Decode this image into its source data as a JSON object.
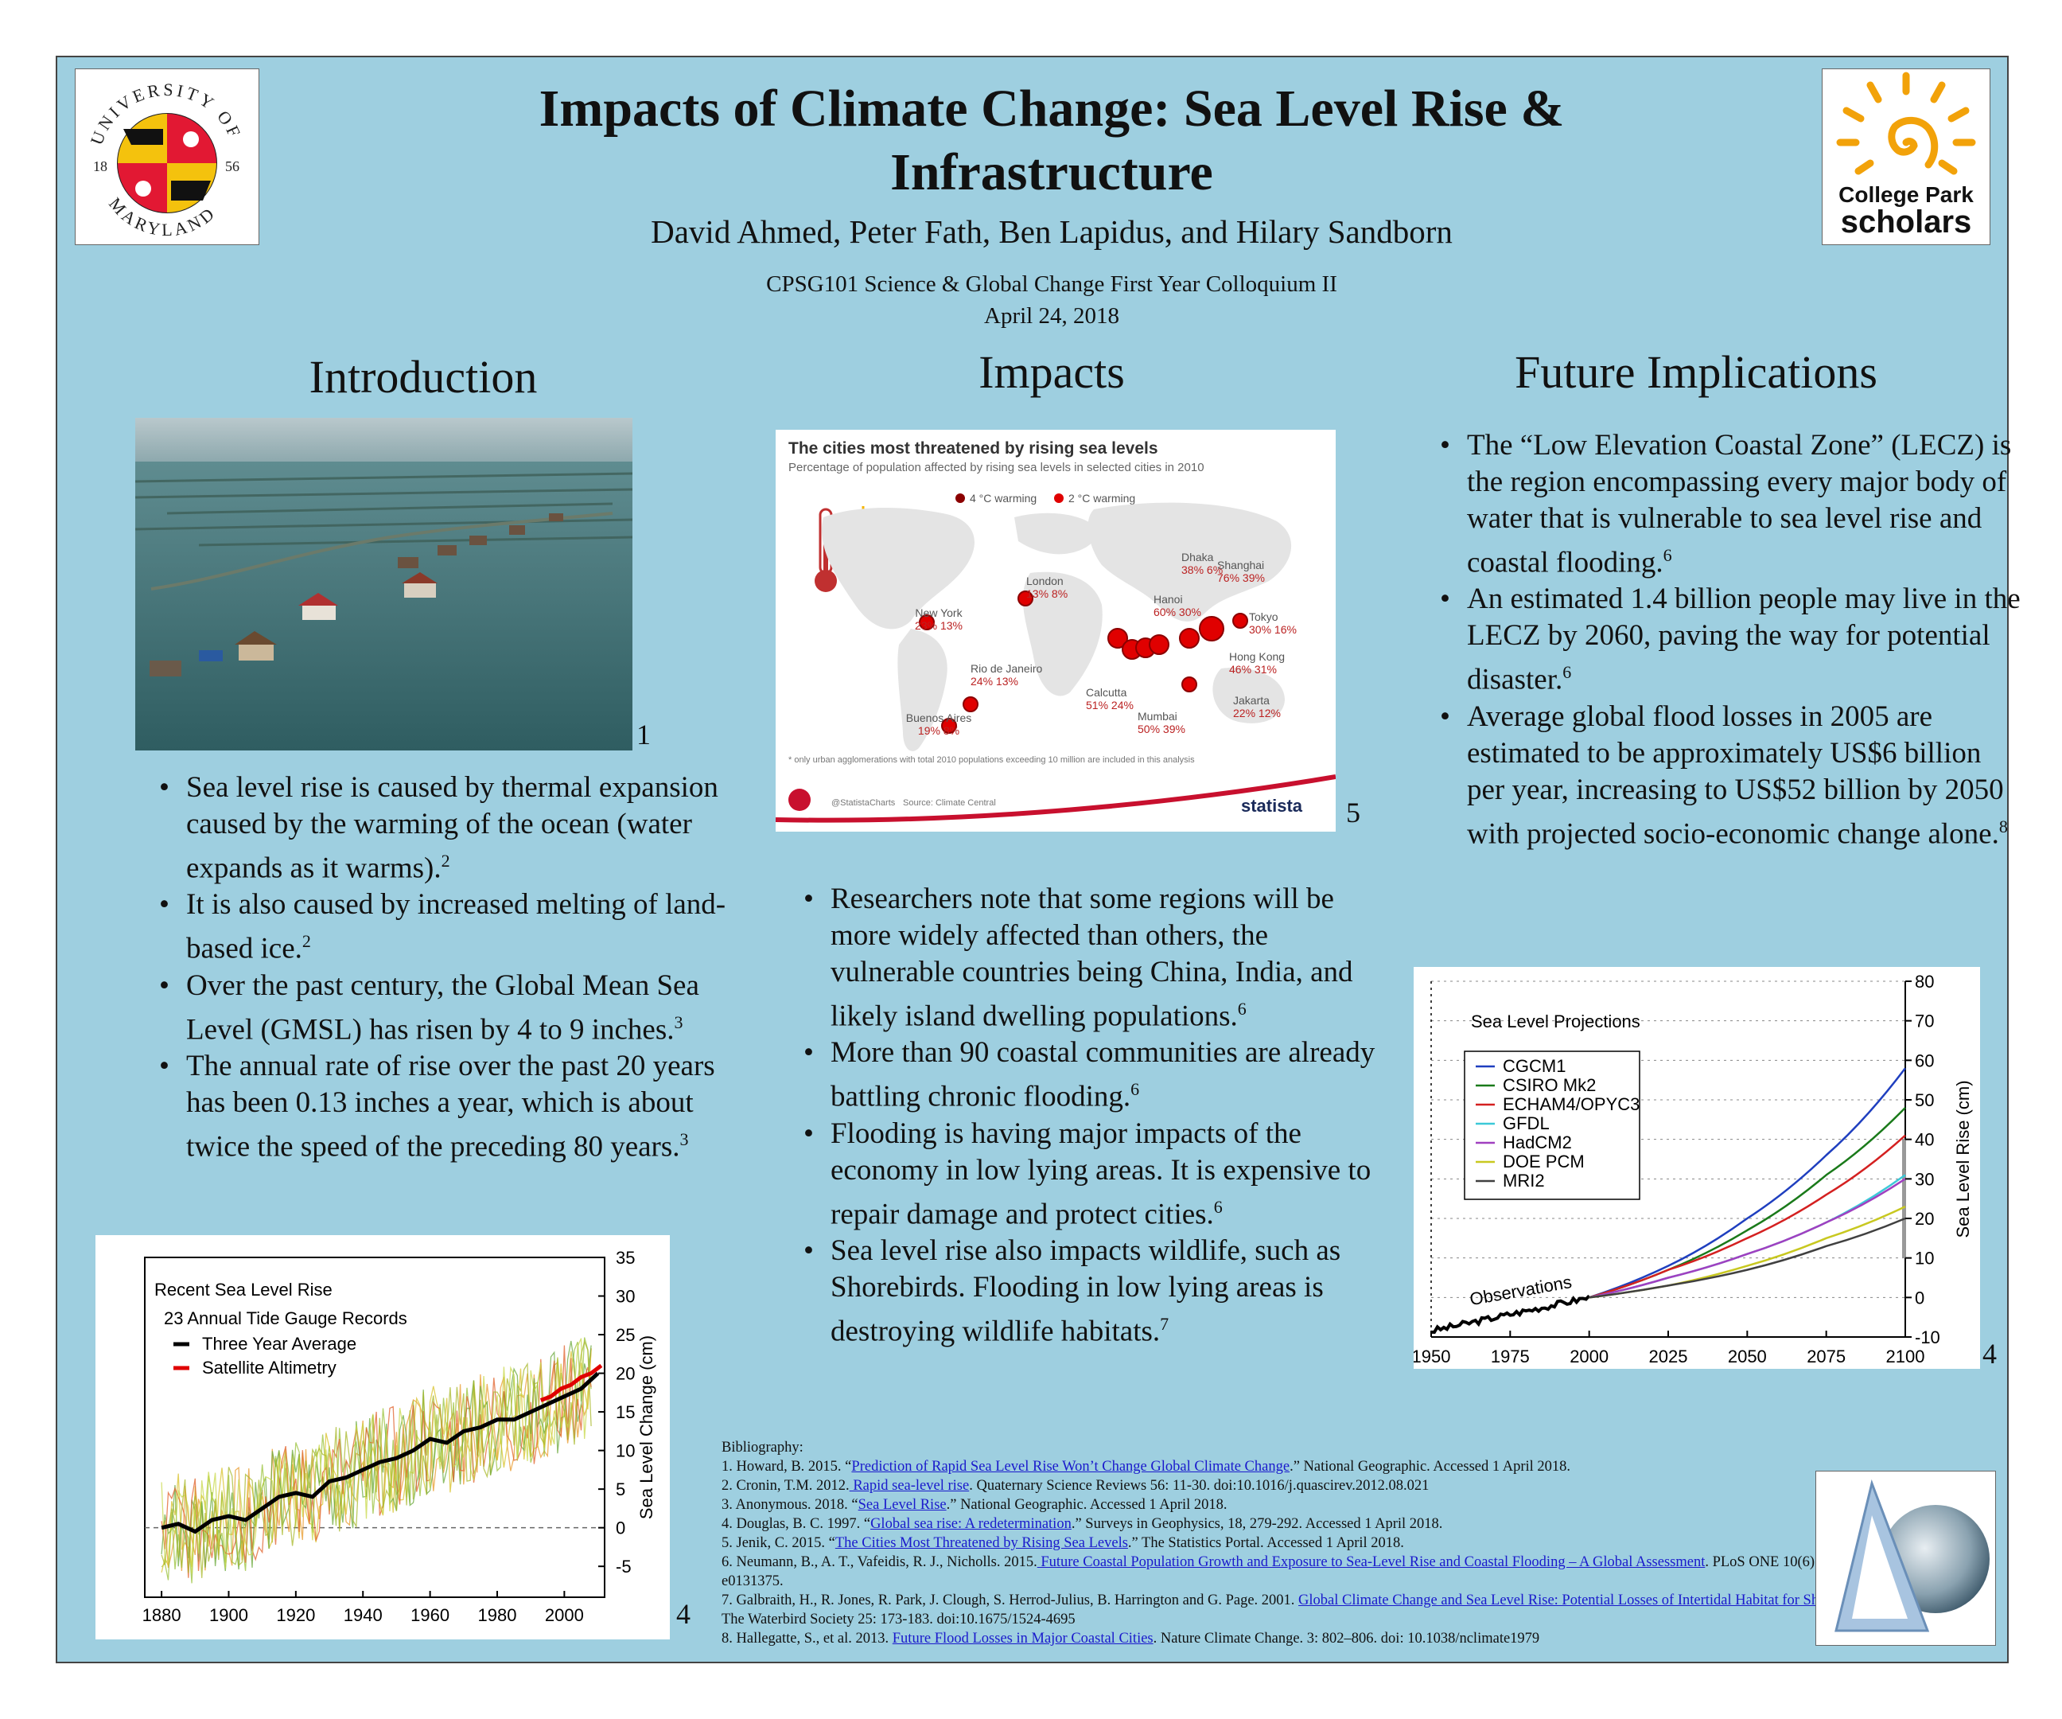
{
  "header": {
    "title_line1": "Impacts of Climate Change: Sea Level Rise &",
    "title_line2": "Infrastructure",
    "authors": "David Ahmed, Peter Fath, Ben Lapidus, and Hilary Sandborn",
    "course": "CPSG101 Science & Global Change First Year Colloquium II",
    "date": "April 24, 2018"
  },
  "logos": {
    "umd_top": "UNIVERSITY OF",
    "umd_bottom": "MARYLAND",
    "umd_year_left": "18",
    "umd_year_right": "56",
    "cps_line1": "College Park",
    "cps_line2": "scholars"
  },
  "intro": {
    "heading": "Introduction",
    "photo_fignum": "1",
    "bullets": [
      {
        "text": "Sea level rise is caused by thermal expansion caused by the warming of the ocean (water expands as it warms).",
        "ref": "2"
      },
      {
        "text": "It is also caused by increased melting of land-based ice.",
        "ref": "2"
      },
      {
        "text": "Over the past century, the Global Mean Sea Level (GMSL) has risen by 4 to 9 inches.",
        "ref": "3"
      },
      {
        "text": "The annual rate of rise over the past 20 years has been 0.13 inches a year, which is about twice the speed of the preceding 80 years.",
        "ref": "3"
      }
    ]
  },
  "impacts": {
    "heading": "Impacts",
    "map_fignum": "5",
    "bullets": [
      {
        "text": "Researchers note that some regions will be more widely affected than others, the vulnerable countries being China, India, and likely island dwelling populations.",
        "ref": "6"
      },
      {
        "text": "More than 90 coastal communities are already battling chronic flooding.",
        "ref": "6"
      },
      {
        "text": "Flooding is having major impacts of the economy in low lying areas. It is expensive to repair damage and protect cities.",
        "ref": "6"
      },
      {
        "text": "Sea level rise also impacts wildlife, such as Shorebirds. Flooding in low lying areas is destroying wildlife habitats.",
        "ref": "7"
      }
    ]
  },
  "future": {
    "heading": "Future Implications",
    "bullets": [
      {
        "text": "The “Low Elevation Coastal Zone” (LECZ) is the region encompassing every major body of water that is vulnerable to sea level rise and coastal flooding.",
        "ref": "6"
      },
      {
        "text": "An estimated 1.4 billion people may live in the LECZ by 2060, paving the way for potential disaster.",
        "ref": "6"
      },
      {
        "text": "Average global flood losses in 2005 are estimated to be approximately US$6 billion per year, increasing to US$52 billion by 2050 with projected socio-economic change alone.",
        "ref": "8"
      }
    ]
  },
  "map_infographic": {
    "title": "The cities most threatened by rising sea levels",
    "subtitle": "Percentage of population affected by rising sea levels in selected cities in 2010",
    "legend_4c": "4 °C warming",
    "legend_2c": "2 °C warming",
    "footnote": "* only urban agglomerations with total 2010 populations exceeding 10 million are included in this analysis",
    "credit": "@StatistaCharts",
    "source": "Source: Climate Central",
    "brand": "statista",
    "color_4c": "#8b0000",
    "color_2c": "#e00000",
    "cities": [
      {
        "name": "London",
        "pct_4c": "13%",
        "pct_2c": "8%"
      },
      {
        "name": "New York",
        "pct_4c": "23%",
        "pct_2c": "13%"
      },
      {
        "name": "Rio de Janeiro",
        "pct_4c": "24%",
        "pct_2c": "13%"
      },
      {
        "name": "Buenos Aires",
        "pct_4c": "19%",
        "pct_2c": "8%"
      },
      {
        "name": "Calcutta",
        "pct_4c": "51%",
        "pct_2c": "24%"
      },
      {
        "name": "Mumbai",
        "pct_4c": "50%",
        "pct_2c": "39%"
      },
      {
        "name": "Dhaka",
        "pct_4c": "38%",
        "pct_2c": "6%"
      },
      {
        "name": "Hanoi",
        "pct_4c": "60%",
        "pct_2c": "30%"
      },
      {
        "name": "Shanghai",
        "pct_4c": "76%",
        "pct_2c": "39%"
      },
      {
        "name": "Tokyo",
        "pct_4c": "30%",
        "pct_2c": "16%"
      },
      {
        "name": "Hong Kong",
        "pct_4c": "46%",
        "pct_2c": "31%"
      },
      {
        "name": "Jakarta",
        "pct_4c": "22%",
        "pct_2c": "12%"
      }
    ]
  },
  "chart_data": [
    {
      "type": "line",
      "title": "Recent Sea Level Rise",
      "subtitle": "23 Annual Tide Gauge Records",
      "ylabel": "Sea Level Change (cm)",
      "xlabel": "",
      "xlim": [
        1875,
        2012
      ],
      "ylim": [
        -9,
        35
      ],
      "xticks": [
        1880,
        1900,
        1920,
        1940,
        1960,
        1980,
        2000
      ],
      "yticks": [
        -5,
        0,
        5,
        10,
        15,
        20,
        25,
        30,
        35
      ],
      "grid": false,
      "legend_position": "top-left",
      "fignum": "4",
      "series": [
        {
          "name": "Three Year Average",
          "color": "#000000",
          "x": [
            1880,
            1885,
            1890,
            1895,
            1900,
            1905,
            1910,
            1915,
            1920,
            1925,
            1930,
            1935,
            1940,
            1945,
            1950,
            1955,
            1960,
            1965,
            1970,
            1975,
            1980,
            1985,
            1990,
            1995,
            2000,
            2005,
            2010
          ],
          "y": [
            0,
            0.5,
            -0.5,
            1,
            1.5,
            1,
            2.5,
            4,
            4.5,
            4,
            6,
            6.5,
            7.5,
            8.5,
            9,
            10,
            11.5,
            11,
            12.5,
            13,
            14,
            14,
            15,
            16,
            17,
            18,
            20
          ]
        },
        {
          "name": "Satellite Altimetry",
          "color": "#e00000",
          "x": [
            1993,
            1996,
            1999,
            2002,
            2005,
            2008,
            2011
          ],
          "y": [
            16.5,
            17,
            18,
            18.5,
            19.5,
            20,
            21
          ]
        }
      ]
    },
    {
      "type": "line",
      "title": "Sea Level Projections",
      "ylabel": "Sea Level Rise (cm)",
      "xlabel": "",
      "annotation": "Observations",
      "xlim": [
        1950,
        2100
      ],
      "ylim": [
        -10,
        80
      ],
      "xticks": [
        1950,
        1975,
        2000,
        2025,
        2050,
        2075,
        2100
      ],
      "yticks": [
        -10,
        0,
        10,
        20,
        30,
        40,
        50,
        60,
        70,
        80
      ],
      "grid": true,
      "legend_position": "top-left",
      "fignum": "4",
      "series": [
        {
          "name": "Observations",
          "color": "#000000",
          "x": [
            1950,
            1955,
            1960,
            1965,
            1970,
            1975,
            1980,
            1985,
            1990,
            1995,
            2000
          ],
          "y": [
            -8.5,
            -8,
            -7,
            -6.5,
            -5.5,
            -4.5,
            -4,
            -3,
            -2,
            -1,
            0
          ]
        },
        {
          "name": "CGCM1",
          "color": "#1f3fbf",
          "x": [
            2000,
            2025,
            2050,
            2075,
            2100
          ],
          "y": [
            0,
            8,
            20,
            36,
            58
          ]
        },
        {
          "name": "CSIRO Mk2",
          "color": "#1a7a1a",
          "x": [
            2000,
            2025,
            2050,
            2075,
            2100
          ],
          "y": [
            0,
            7,
            17,
            31,
            48
          ]
        },
        {
          "name": "ECHAM4/OPYC3",
          "color": "#d42020",
          "x": [
            2000,
            2025,
            2050,
            2075,
            2100
          ],
          "y": [
            0,
            7,
            15,
            26,
            41
          ]
        },
        {
          "name": "GFDL",
          "color": "#3cc9d8",
          "x": [
            2000,
            2025,
            2050,
            2075,
            2100
          ],
          "y": [
            0,
            5,
            11,
            19,
            31
          ]
        },
        {
          "name": "HadCM2",
          "color": "#a040c0",
          "x": [
            2000,
            2025,
            2050,
            2075,
            2100
          ],
          "y": [
            0,
            5,
            11,
            19,
            30
          ]
        },
        {
          "name": "DOE PCM",
          "color": "#c8c820",
          "x": [
            2000,
            2025,
            2050,
            2075,
            2100
          ],
          "y": [
            0,
            3,
            8,
            15,
            23
          ]
        },
        {
          "name": "MRI2",
          "color": "#404040",
          "x": [
            2000,
            2025,
            2050,
            2075,
            2100
          ],
          "y": [
            0,
            3,
            7,
            13,
            20
          ]
        }
      ]
    }
  ],
  "bibliography": {
    "heading": "Bibliography:",
    "entries": [
      {
        "pre": "1. Howard, B. 2015. “",
        "link": "Prediction of Rapid Sea Level Rise Won’t Change Global Climate Change",
        "post": ".” National Geographic. Accessed 1 April 2018."
      },
      {
        "pre": "2. Cronin, T.M. 2012.",
        "link": " Rapid sea-level rise",
        "post": ". Quaternary Science Reviews 56: 11-30. doi:10.1016/j.quascirev.2012.08.021"
      },
      {
        "pre": "3. Anonymous. 2018. “",
        "link": "Sea Level Rise",
        "post": ".” National Geographic. Accessed 1 April 2018."
      },
      {
        "pre": "4. Douglas, B. C. 1997. “",
        "link": "Global sea rise: A redetermination",
        "post": ".” Surveys in Geophysics, 18, 279-292. Accessed 1 April 2018."
      },
      {
        "pre": "5. Jenik, C. 2015. “",
        "link": "The Cities Most Threatened by Rising Sea Levels",
        "post": ".” The Statistics Portal. Accessed 1 April 2018."
      },
      {
        "pre": "6. Neumann, B., A. T., Vafeidis, R. J., Nicholls. 2015.",
        "link": " Future Coastal Population Growth and Exposure to Sea-Level Rise and Coastal Flooding – A Global Assessment",
        "post": ". PLoS ONE 10(6): e0131375."
      },
      {
        "pre": "7. Galbraith, H., R. Jones, R. Park, J. Clough, S. Herrod-Julius, B. Harrington and G. Page. 2001. ",
        "link": "Global Climate Change and Sea Level Rise: Potential Losses of Intertidal Habitat for Shorebirds",
        "post": ". The Waterbird Society 25: 173-183. doi:10.1675/1524-4695"
      },
      {
        "pre": "8. Hallegatte, S., et al.  2013. ",
        "link": "Future Flood Losses in Major Coastal Cities",
        "post": ". Nature Climate Change. 3: 802–806. doi: 10.1038/nclimate1979"
      }
    ]
  }
}
